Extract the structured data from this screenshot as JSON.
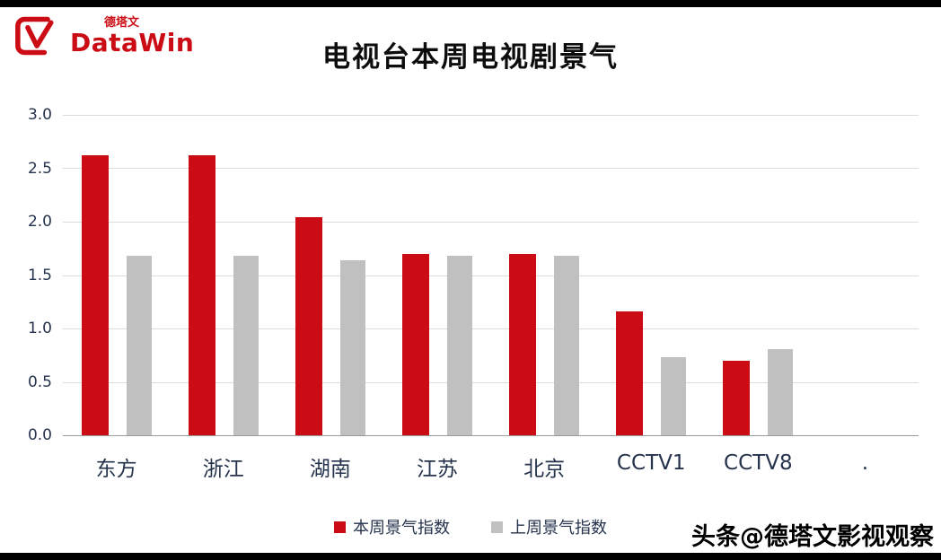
{
  "header": {
    "title": "电视台本周电视剧景气",
    "logo_text": "DataWin",
    "logo_sub": "德塔文"
  },
  "chart_data": {
    "type": "bar",
    "title": "电视台本周电视剧景气",
    "categories": [
      "东方",
      "浙江",
      "湖南",
      "江苏",
      "北京",
      "CCTV1",
      "CCTV8"
    ],
    "series": [
      {
        "name": "本周景气指数",
        "color": "#cb0c15",
        "values": [
          2.62,
          2.62,
          2.04,
          1.7,
          1.7,
          1.16,
          0.7
        ]
      },
      {
        "name": "上周景气指数",
        "color": "#c0c0c0",
        "values": [
          1.68,
          1.68,
          1.64,
          1.68,
          1.68,
          0.73,
          0.81
        ]
      }
    ],
    "xlabel": "",
    "ylabel": "",
    "ylim": [
      0,
      3.0
    ],
    "yticks": [
      "3.0",
      "2.5",
      "2.0",
      "1.5",
      "1.0",
      "0.5",
      "0.0"
    ],
    "grid": true,
    "legend_position": "bottom",
    "extra_x_label": "."
  },
  "footer": {
    "watermark": "头条@德塔文影视观察"
  }
}
